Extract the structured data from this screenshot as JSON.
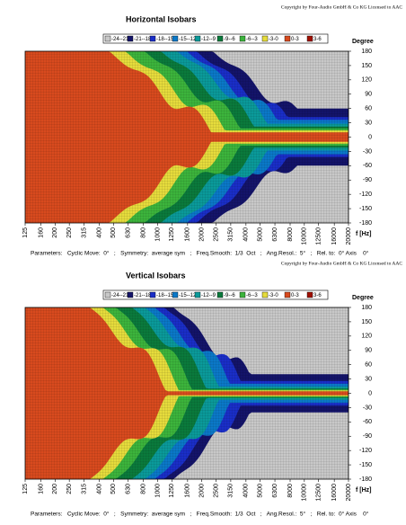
{
  "chart_data": [
    {
      "type": "contour",
      "copyright": "Copyright by Four-Audio GmbH & Co KG   Licensed to AAC",
      "title": "Horizontal Isobars",
      "ylabel": "Degree",
      "xlabel": "f [Hz]",
      "levels": [
        {
          "label": "-24--21",
          "color": "#c8c8c8"
        },
        {
          "label": "-21--18",
          "color": "#14146a"
        },
        {
          "label": "-18--15",
          "color": "#1a2ec8"
        },
        {
          "label": "-15--12",
          "color": "#0a78c8"
        },
        {
          "label": "-12--9",
          "color": "#0a9a9a"
        },
        {
          "label": "-9--6",
          "color": "#0a7a3c"
        },
        {
          "label": "-6--3",
          "color": "#3cb43c"
        },
        {
          "label": "-3-0",
          "color": "#e6dc3c"
        },
        {
          "label": "0-3",
          "color": "#d84a1e"
        },
        {
          "label": "3-6",
          "color": "#a01000"
        }
      ],
      "xlim": [
        125,
        20000
      ],
      "log_x": true,
      "xticks": [
        125,
        160,
        200,
        250,
        315,
        400,
        500,
        630,
        800,
        1000,
        1250,
        1600,
        2000,
        2500,
        3150,
        4000,
        5000,
        6300,
        8000,
        10000,
        12500,
        16000,
        20000
      ],
      "ylim": [
        -180,
        180
      ],
      "yticks": [
        180,
        150,
        120,
        90,
        60,
        30,
        0,
        -30,
        -60,
        -90,
        -120,
        -150,
        -180
      ],
      "grid": true,
      "parameters": "Parameters:   Cyclic Move:  0°   ;   Symmetry:  average sym   ;   Freq.Smooth:  1/3  Oct   ;   Ang.Resol.:  5°   ;   Rel. to:  0° Axis    0°"
    },
    {
      "type": "contour",
      "copyright": "Copyright by Four-Audio GmbH & Co KG   Licensed to AAC",
      "title": "Vertical Isobars",
      "ylabel": "Degree",
      "xlabel": "f [Hz]",
      "levels": [
        {
          "label": "-24--21",
          "color": "#c8c8c8"
        },
        {
          "label": "-21--18",
          "color": "#14146a"
        },
        {
          "label": "-18--15",
          "color": "#1a2ec8"
        },
        {
          "label": "-15--12",
          "color": "#0a78c8"
        },
        {
          "label": "-12--9",
          "color": "#0a9a9a"
        },
        {
          "label": "-9--6",
          "color": "#0a7a3c"
        },
        {
          "label": "-6--3",
          "color": "#3cb43c"
        },
        {
          "label": "-3-0",
          "color": "#e6dc3c"
        },
        {
          "label": "0-3",
          "color": "#d84a1e"
        },
        {
          "label": "3-6",
          "color": "#a01000"
        }
      ],
      "xlim": [
        125,
        20000
      ],
      "log_x": true,
      "xticks": [
        125,
        160,
        200,
        250,
        315,
        400,
        500,
        630,
        800,
        1000,
        1250,
        1600,
        2000,
        2500,
        3150,
        4000,
        5000,
        6300,
        8000,
        10000,
        12500,
        16000,
        20000
      ],
      "ylim": [
        -180,
        180
      ],
      "yticks": [
        180,
        150,
        120,
        90,
        60,
        30,
        0,
        -30,
        -60,
        -90,
        -120,
        -150,
        -180
      ],
      "grid": true,
      "parameters": "Parameters:   Cyclic Move:  0°   ;   Symmetry:  average sym   ;   Freq.Smooth:  1/3  Oct   ;   Ang.Resol.:  5°   ;   Rel. to:  0° Axis    0°"
    }
  ]
}
